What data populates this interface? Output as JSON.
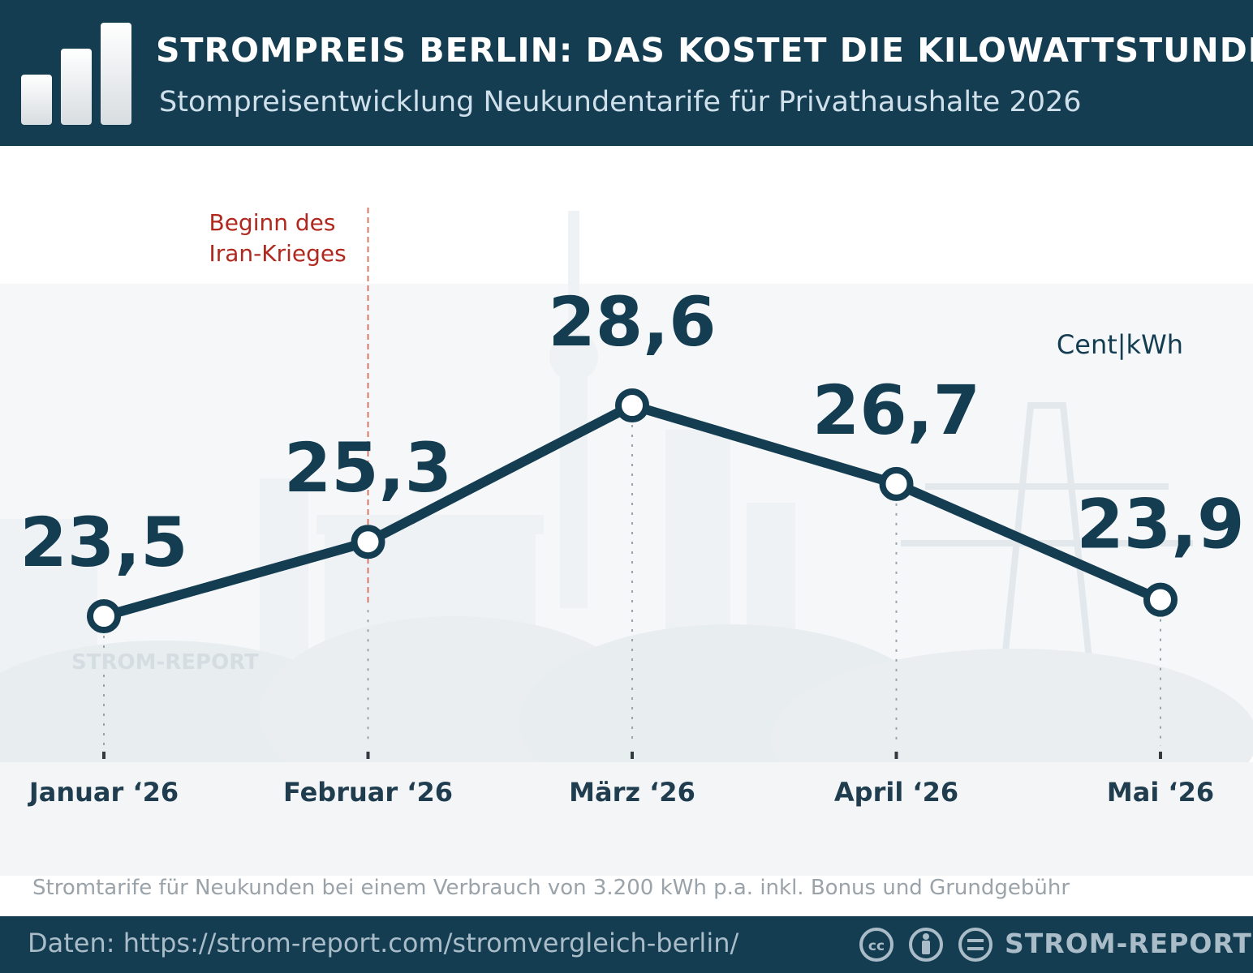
{
  "header": {
    "title": "STROMPREIS BERLIN: DAS KOSTET DIE KILOWATTSTUNDE",
    "subtitle": "Stompreisentwicklung Neukundentarife für Privathaushalte 2026"
  },
  "chart_data": {
    "type": "line",
    "unit_label": "Cent|kWh",
    "categories": [
      "Januar ‘26",
      "Februar ‘26",
      "März ‘26",
      "April ‘26",
      "Mai ‘26"
    ],
    "values": [
      23.5,
      25.3,
      28.6,
      26.7,
      23.9
    ],
    "value_labels": [
      "23,5",
      "25,3",
      "28,6",
      "26,7",
      "23,9"
    ],
    "annotation": {
      "text_line1": "Beginn des",
      "text_line2": "Iran-Krieges",
      "color": "#b0281e"
    },
    "grid": false,
    "colors": {
      "line": "#143d52",
      "marker_fill": "#ffffff"
    }
  },
  "footnote": "Stromtarife für Neukunden bei einem Verbrauch von 3.200 kWh p.a. inkl. Bonus und Grundgebühr",
  "footer": {
    "source": "Daten: https://strom-report.com/stromvergleich-berlin/",
    "brand": "STROM-REPORT",
    "license_icons": [
      "cc-icon",
      "by-icon",
      "nd-icon"
    ]
  },
  "watermark": "STROM-REPORT"
}
